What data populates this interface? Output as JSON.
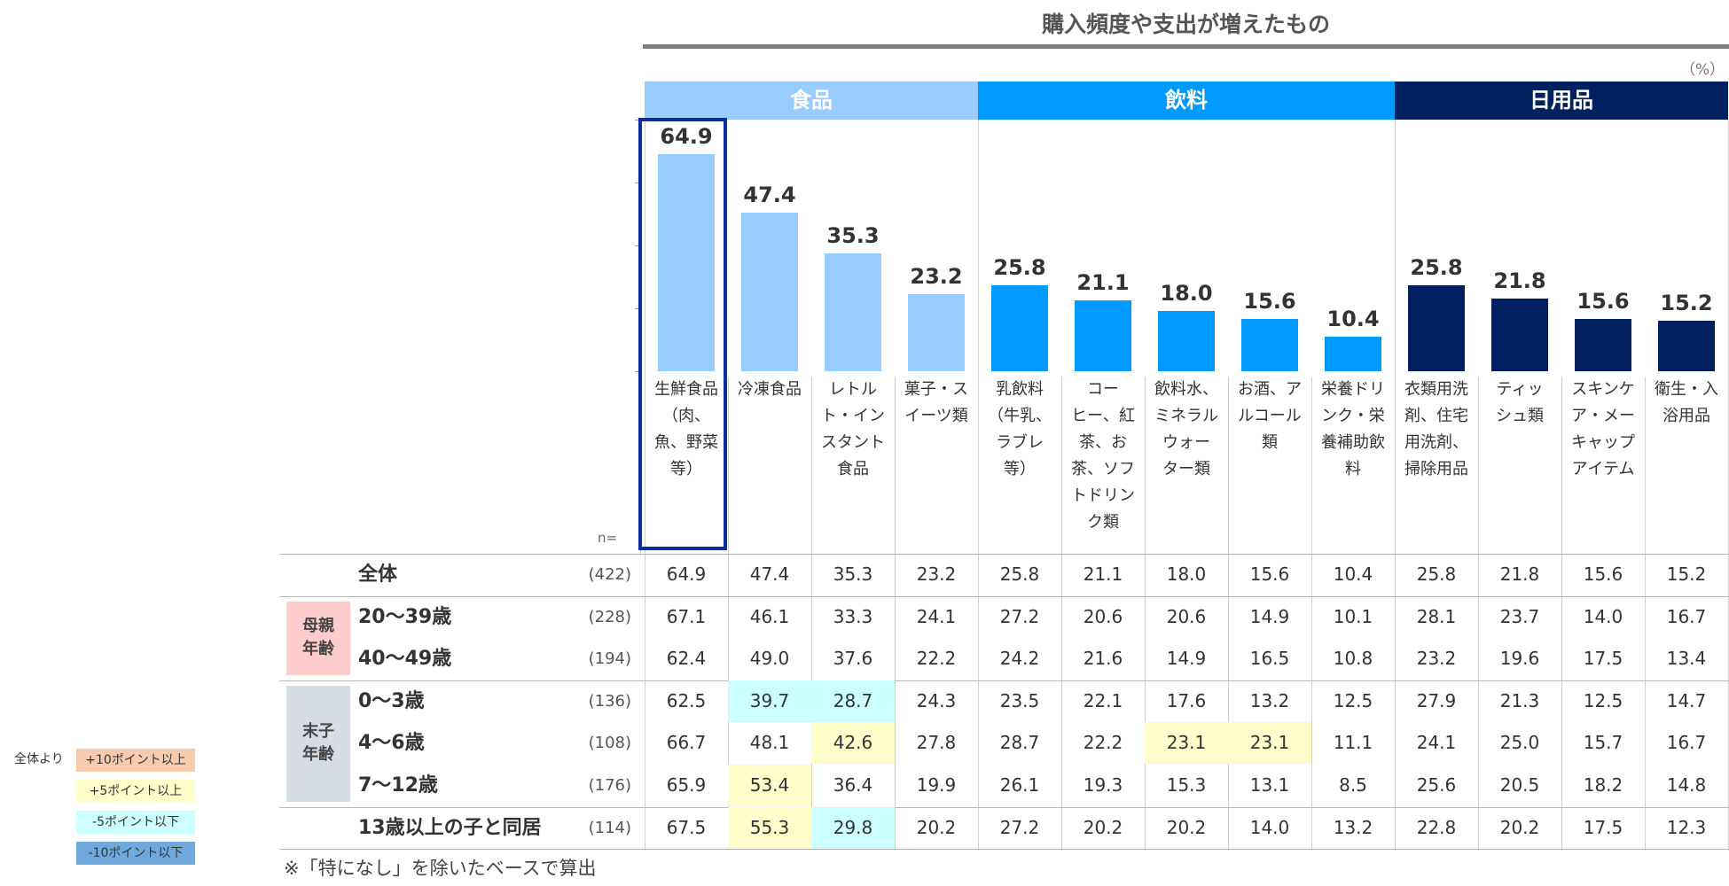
{
  "chart_data": {
    "type": "bar",
    "title": "購入頻度や支出が増えたもの",
    "unit_label": "（%）",
    "n_label": "n=",
    "groups": [
      {
        "name": "食品",
        "color": "#99ccff",
        "start": 0,
        "count": 4
      },
      {
        "name": "飲料",
        "color": "#0099ff",
        "start": 4,
        "count": 5
      },
      {
        "name": "日用品",
        "color": "#002060",
        "start": 9,
        "count": 4
      }
    ],
    "categories": [
      "生鮮食品\n（肉、\n魚、野菜\n等）",
      "冷凍食品",
      "レトル\nト・イン\nスタント\n食品",
      "菓子・ス\nイーツ類",
      "乳飲料\n（牛乳、\nラブレ\n等）",
      "コー\nヒー、紅\n茶、お\n茶、ソフ\nトドリン\nク類",
      "飲料水、\nミネラル\nウォー\nター類",
      "お酒、ア\nルコール\n類",
      "栄養ドリ\nンク・栄\n養補助飲\n料",
      "衣類用洗\n剤、住宅\n用洗剤、\n掃除用品",
      "ティッ\nシュ類",
      "スキンケ\nア・メー\nキャップ\nアイテム",
      "衛生・入\n浴用品"
    ],
    "values": [
      64.9,
      47.4,
      35.3,
      23.2,
      25.8,
      21.1,
      18.0,
      15.6,
      10.4,
      25.8,
      21.8,
      15.6,
      15.2
    ],
    "value_labels": [
      "64.9",
      "47.4",
      "35.3",
      "23.2",
      "25.8",
      "21.1",
      "18.0",
      "15.6",
      "10.4",
      "25.8",
      "21.8",
      "15.6",
      "15.2"
    ],
    "ylim": [
      0,
      70
    ],
    "highlighted_category": "生鮮食品\n（肉、\n魚、野菜\n等）"
  },
  "table": {
    "row_groups": [
      {
        "label": "",
        "color": ""
      },
      {
        "label": "母親\n年齢",
        "color": "#ffcccc"
      },
      {
        "label": "末子\n年齢",
        "color": "#d6dce4"
      },
      {
        "label": "",
        "color": ""
      }
    ],
    "rows": [
      {
        "label": "全体",
        "n": "(422)",
        "values": [
          "64.9",
          "47.4",
          "35.3",
          "23.2",
          "25.8",
          "21.1",
          "18.0",
          "15.6",
          "10.4",
          "25.8",
          "21.8",
          "15.6",
          "15.2"
        ],
        "highlights": [
          "",
          "",
          "",
          "",
          "",
          "",
          "",
          "",
          "",
          "",
          "",
          "",
          ""
        ]
      },
      {
        "label": "20～39歳",
        "n": "(228)",
        "values": [
          "67.1",
          "46.1",
          "33.3",
          "24.1",
          "27.2",
          "20.6",
          "20.6",
          "14.9",
          "10.1",
          "28.1",
          "23.7",
          "14.0",
          "16.7"
        ],
        "highlights": [
          "",
          "",
          "",
          "",
          "",
          "",
          "",
          "",
          "",
          "",
          "",
          "",
          ""
        ]
      },
      {
        "label": "40～49歳",
        "n": "(194)",
        "values": [
          "62.4",
          "49.0",
          "37.6",
          "22.2",
          "24.2",
          "21.6",
          "14.9",
          "16.5",
          "10.8",
          "23.2",
          "19.6",
          "17.5",
          "13.4"
        ],
        "highlights": [
          "",
          "",
          "",
          "",
          "",
          "",
          "",
          "",
          "",
          "",
          "",
          "",
          ""
        ]
      },
      {
        "label": "0～3歳",
        "n": "(136)",
        "values": [
          "62.5",
          "39.7",
          "28.7",
          "24.3",
          "23.5",
          "22.1",
          "17.6",
          "13.2",
          "12.5",
          "27.9",
          "21.3",
          "12.5",
          "14.7"
        ],
        "highlights": [
          "",
          "#ccffff",
          "#ccffff",
          "",
          "",
          "",
          "",
          "",
          "",
          "",
          "",
          "",
          ""
        ]
      },
      {
        "label": "4～6歳",
        "n": "(108)",
        "values": [
          "66.7",
          "48.1",
          "42.6",
          "27.8",
          "28.7",
          "22.2",
          "23.1",
          "23.1",
          "11.1",
          "24.1",
          "25.0",
          "15.7",
          "16.7"
        ],
        "highlights": [
          "",
          "",
          "#ffffcc",
          "",
          "",
          "",
          "#ffffcc",
          "#ffffcc",
          "",
          "",
          "",
          "",
          ""
        ]
      },
      {
        "label": "7～12歳",
        "n": "(176)",
        "values": [
          "65.9",
          "53.4",
          "36.4",
          "19.9",
          "26.1",
          "19.3",
          "15.3",
          "13.1",
          "8.5",
          "25.6",
          "20.5",
          "18.2",
          "14.8"
        ],
        "highlights": [
          "",
          "#ffffcc",
          "",
          "",
          "",
          "",
          "",
          "",
          "",
          "",
          "",
          "",
          ""
        ]
      },
      {
        "label": "13歳以上の子と同居",
        "n": "(114)",
        "values": [
          "67.5",
          "55.3",
          "29.8",
          "20.2",
          "27.2",
          "20.2",
          "20.2",
          "14.0",
          "13.2",
          "22.8",
          "20.2",
          "17.5",
          "12.3"
        ],
        "highlights": [
          "",
          "#ffffcc",
          "#ccffff",
          "",
          "",
          "",
          "",
          "",
          "",
          "",
          "",
          "",
          ""
        ]
      }
    ],
    "footnote": "※「特になし」を除いたベースで算出"
  },
  "legend": {
    "prefix": "全体より",
    "items": [
      {
        "label": "+10ポイント以上",
        "color": "#f8cbad"
      },
      {
        "label": "+5ポイント以上",
        "color": "#ffffcc"
      },
      {
        "label": "-5ポイント以下",
        "color": "#ccffff"
      },
      {
        "label": "-10ポイント以下",
        "color": "#6fa8dc"
      }
    ]
  }
}
